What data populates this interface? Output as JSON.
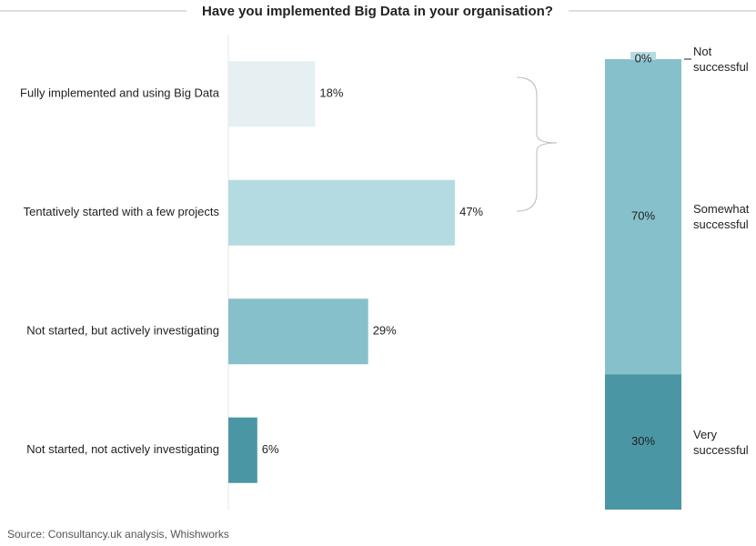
{
  "chart_data": [
    {
      "type": "bar",
      "orientation": "horizontal",
      "title": "Have you implemented Big Data in your organisation?",
      "categories": [
        "Fully implemented and using Big Data",
        "Tentatively started with a few projects",
        "Not started, but actively investigating",
        "Not started, not actively investigating"
      ],
      "values": [
        18,
        47,
        29,
        6
      ],
      "value_labels": [
        "18%",
        "47%",
        "29%",
        "6%"
      ],
      "colors": [
        "#e6eff1",
        "#b5dbe2",
        "#86c0cb",
        "#4b96a5"
      ]
    },
    {
      "type": "stacked_bar",
      "series": [
        {
          "name": "Very successful",
          "color": "#4b96a5",
          "values": [
            30
          ],
          "value_labels": [
            "30%"
          ]
        },
        {
          "name": "Somewhat successful",
          "color": "#86c0cb",
          "values": [
            70
          ],
          "value_labels": [
            "70%"
          ]
        },
        {
          "name": "Not successful",
          "color": "#b5dbe2",
          "values": [
            0
          ],
          "value_labels": [
            "0%"
          ]
        }
      ]
    }
  ],
  "source": "Source: Consultancy.uk analysis, Whishworks"
}
